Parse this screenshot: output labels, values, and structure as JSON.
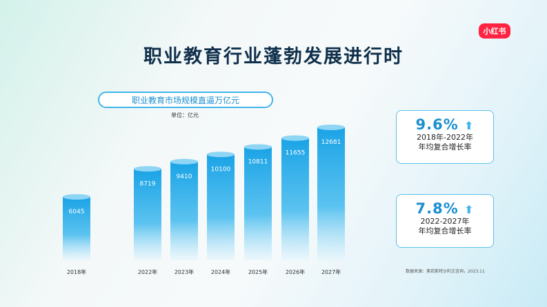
{
  "logo": "小红书",
  "title": "职业教育行业蓬勃发展进行时",
  "subtitle": "职业教育市场规模直逼万亿元",
  "unit": "单位：亿元",
  "cards": [
    {
      "value": "9.6%",
      "label1": "2018年-2022年",
      "label2": "年均复合增长率"
    },
    {
      "value": "7.8%",
      "label1": "2022-2027年",
      "label2": "年均复合增长率"
    }
  ],
  "source": "数据来源：弗若斯特沙利文咨询，2023.11",
  "colors": {
    "bar_top": "#1aa3e6",
    "bar_bottom": "#e6f5fc",
    "accent": "#1a8fd0",
    "logo": "#ff2442"
  },
  "chart_data": {
    "type": "bar",
    "categories": [
      "2018年",
      "2022年",
      "2023年",
      "2024年",
      "2025年",
      "2026年",
      "2027年"
    ],
    "values": [
      6045,
      8719,
      9410,
      10100,
      10811,
      11655,
      12681
    ],
    "ylabel": "单位：亿元",
    "ylim": [
      0,
      12681
    ],
    "grid": false
  }
}
